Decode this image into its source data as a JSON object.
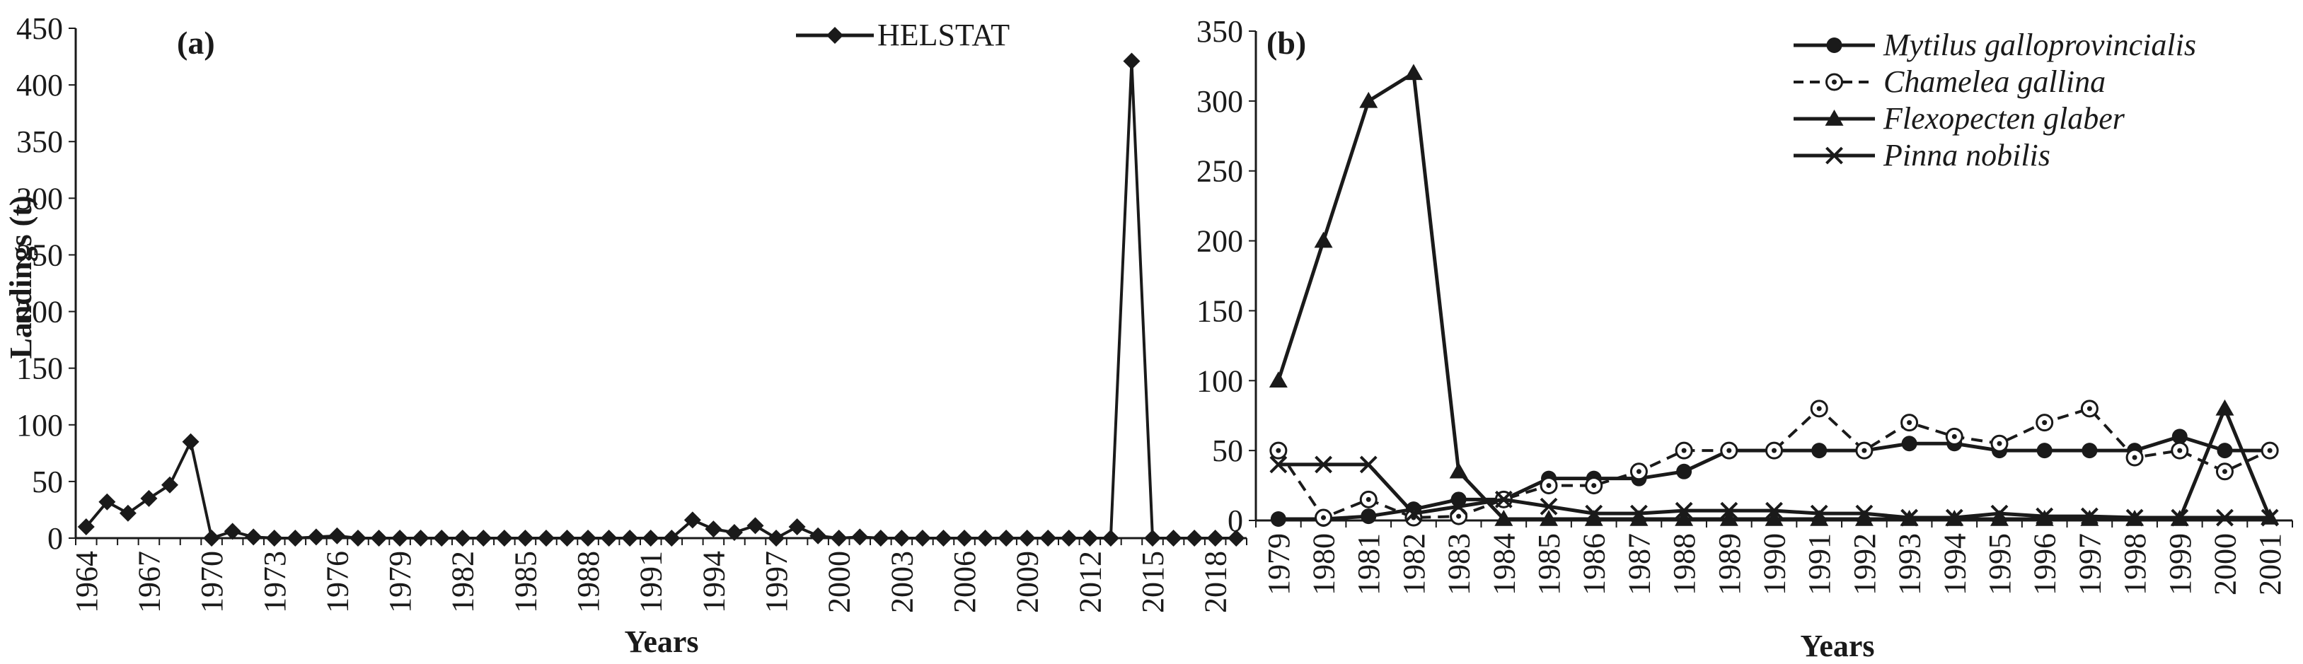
{
  "chart_data": [
    {
      "type": "line",
      "panel_label": "(a)",
      "xlabel": "Years",
      "ylabel": "Landings (t)",
      "ylim": [
        0,
        450
      ],
      "yticks": [
        0,
        50,
        100,
        150,
        200,
        250,
        300,
        350,
        400,
        450
      ],
      "x": [
        1964,
        1965,
        1966,
        1967,
        1968,
        1969,
        1970,
        1971,
        1972,
        1973,
        1974,
        1975,
        1976,
        1977,
        1978,
        1979,
        1980,
        1981,
        1982,
        1983,
        1984,
        1985,
        1986,
        1987,
        1988,
        1989,
        1990,
        1991,
        1992,
        1993,
        1994,
        1995,
        1996,
        1997,
        1998,
        1999,
        2000,
        2001,
        2002,
        2003,
        2004,
        2005,
        2006,
        2007,
        2008,
        2009,
        2010,
        2011,
        2012,
        2013,
        2014,
        2015,
        2016,
        2017,
        2018,
        2019
      ],
      "xtick_labels": [
        "1964",
        "1967",
        "1970",
        "1973",
        "1976",
        "1979",
        "1982",
        "1985",
        "1988",
        "1991",
        "1994",
        "1997",
        "2000",
        "2003",
        "2006",
        "2009",
        "2012",
        "2015",
        "2018"
      ],
      "legend_position": "top-right",
      "grid": false,
      "series": [
        {
          "name": "HELSTAT",
          "marker": "diamond",
          "line": "solid",
          "values": [
            10,
            32,
            22,
            35,
            47,
            85,
            0,
            6,
            1,
            0,
            0,
            1,
            2,
            0,
            0,
            0,
            0,
            0,
            0,
            0,
            0,
            0,
            0,
            0,
            0,
            0,
            0,
            0,
            0,
            16,
            8,
            5,
            11,
            0,
            10,
            2,
            0,
            1,
            0,
            0,
            0,
            0,
            0,
            0,
            0,
            0,
            0,
            0,
            0,
            0,
            421,
            0,
            0,
            0,
            0,
            0
          ]
        }
      ]
    },
    {
      "type": "line",
      "panel_label": "(b)",
      "xlabel": "Years",
      "ylabel": "",
      "ylim": [
        0,
        350
      ],
      "yticks": [
        0,
        50,
        100,
        150,
        200,
        250,
        300,
        350
      ],
      "categories": [
        "1979",
        "1980",
        "1981",
        "1982",
        "1983",
        "1984",
        "1985",
        "1986",
        "1987",
        "1988",
        "1989",
        "1990",
        "1991",
        "1992",
        "1993",
        "1994",
        "1995",
        "1996",
        "1997",
        "1998",
        "1999",
        "2000",
        "2001"
      ],
      "legend_position": "top-right",
      "grid": false,
      "series": [
        {
          "name": "Mytilus galloprovincialis",
          "marker": "filled-circle",
          "line": "solid",
          "values": [
            1,
            1,
            3,
            8,
            15,
            15,
            30,
            30,
            30,
            35,
            50,
            50,
            50,
            50,
            55,
            55,
            50,
            50,
            50,
            50,
            60,
            50,
            50
          ]
        },
        {
          "name": "Chamelea gallina",
          "marker": "open-circle",
          "line": "dashed",
          "values": [
            50,
            2,
            15,
            2,
            3,
            15,
            25,
            25,
            35,
            50,
            50,
            50,
            80,
            50,
            70,
            60,
            55,
            70,
            80,
            45,
            50,
            35,
            50
          ]
        },
        {
          "name": "Flexopecten glaber",
          "marker": "triangle",
          "line": "solid",
          "values": [
            100,
            200,
            300,
            320,
            35,
            1,
            1,
            1,
            1,
            1,
            1,
            1,
            1,
            1,
            1,
            1,
            1,
            1,
            1,
            1,
            1,
            80,
            2
          ]
        },
        {
          "name": "Pinna nobilis",
          "marker": "x",
          "line": "solid",
          "values": [
            40,
            40,
            40,
            5,
            10,
            15,
            10,
            5,
            5,
            7,
            7,
            7,
            5,
            5,
            2,
            2,
            5,
            3,
            3,
            2,
            2,
            2,
            2
          ]
        }
      ]
    }
  ]
}
